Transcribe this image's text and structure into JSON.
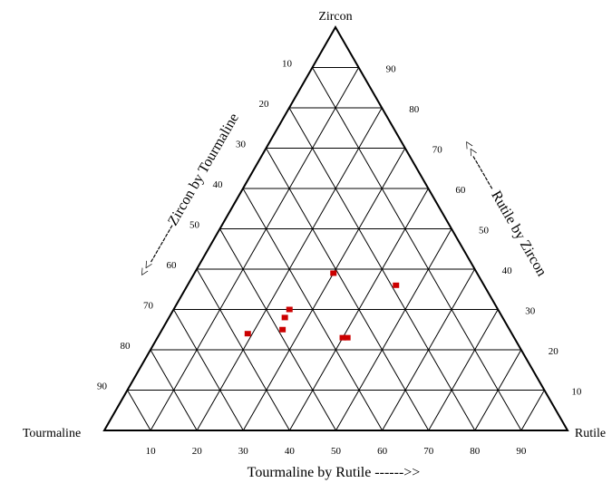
{
  "chart_data": {
    "type": "scatter",
    "subtype": "ternary",
    "vertices": {
      "top": "Zircon",
      "left": "Tourmaline",
      "right": "Rutile"
    },
    "axes": {
      "bottom": {
        "label": "Tourmaline by Rutile ------>>",
        "ticks": [
          10,
          20,
          30,
          40,
          50,
          60,
          70,
          80,
          90
        ]
      },
      "left": {
        "label": "<<---------Zircon by Tourmaline",
        "ticks": [
          10,
          20,
          30,
          40,
          50,
          60,
          70,
          80,
          90
        ]
      },
      "right": {
        "label": "<<-------- Rutile by Zircon",
        "ticks": [
          90,
          80,
          70,
          60,
          50,
          40,
          30,
          20,
          10
        ]
      }
    },
    "grid": true,
    "grid_step": 10,
    "marker_color": "#cc0000",
    "points": [
      {
        "Zircon": 39,
        "Rutile": 30
      },
      {
        "Zircon": 36,
        "Rutile": 45
      },
      {
        "Zircon": 30,
        "Rutile": 25
      },
      {
        "Zircon": 28,
        "Rutile": 25
      },
      {
        "Zircon": 25,
        "Rutile": 26
      },
      {
        "Zircon": 24,
        "Rutile": 19
      },
      {
        "Zircon": 23,
        "Rutile": 40
      },
      {
        "Zircon": 23,
        "Rutile": 41
      }
    ]
  }
}
